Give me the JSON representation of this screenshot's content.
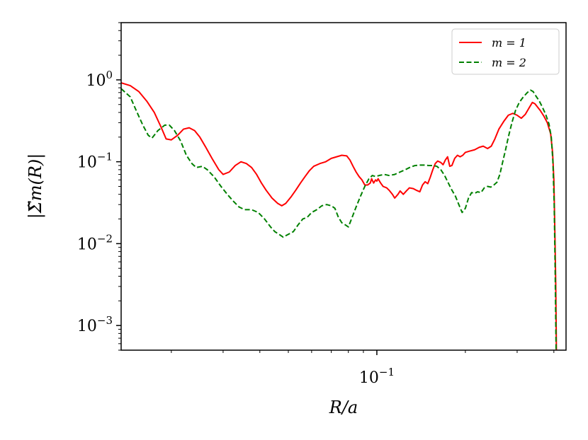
{
  "chart_data": {
    "type": "line",
    "xscale": "log",
    "yscale": "log",
    "xlabel": "R/a",
    "ylabel": "|Σ̃m(R)|",
    "xlim": [
      0.0135,
      0.44
    ],
    "ylim": [
      0.0005,
      5
    ],
    "x_ticks": [
      {
        "value": 0.1,
        "base": "10",
        "exp": "−1"
      }
    ],
    "y_ticks": [
      {
        "value": 1,
        "base": "10",
        "exp": "0"
      },
      {
        "value": 0.1,
        "base": "10",
        "exp": "−1"
      },
      {
        "value": 0.01,
        "base": "10",
        "exp": "−2"
      },
      {
        "value": 0.001,
        "base": "10",
        "exp": "−3"
      }
    ],
    "legend": {
      "position": "top-right"
    },
    "series": [
      {
        "name": "m = 1",
        "color": "#ff0000",
        "dash": "solid",
        "points": [
          [
            0.0135,
            0.92
          ],
          [
            0.0145,
            0.85
          ],
          [
            0.0155,
            0.72
          ],
          [
            0.0165,
            0.55
          ],
          [
            0.0175,
            0.4
          ],
          [
            0.0185,
            0.26
          ],
          [
            0.0192,
            0.19
          ],
          [
            0.02,
            0.185
          ],
          [
            0.021,
            0.21
          ],
          [
            0.022,
            0.25
          ],
          [
            0.023,
            0.26
          ],
          [
            0.024,
            0.24
          ],
          [
            0.025,
            0.2
          ],
          [
            0.0262,
            0.15
          ],
          [
            0.0275,
            0.11
          ],
          [
            0.029,
            0.08
          ],
          [
            0.03,
            0.07
          ],
          [
            0.0315,
            0.075
          ],
          [
            0.033,
            0.09
          ],
          [
            0.0345,
            0.1
          ],
          [
            0.036,
            0.095
          ],
          [
            0.0375,
            0.085
          ],
          [
            0.039,
            0.07
          ],
          [
            0.0405,
            0.055
          ],
          [
            0.042,
            0.045
          ],
          [
            0.044,
            0.036
          ],
          [
            0.046,
            0.031
          ],
          [
            0.0475,
            0.029
          ],
          [
            0.049,
            0.031
          ],
          [
            0.051,
            0.037
          ],
          [
            0.053,
            0.045
          ],
          [
            0.055,
            0.055
          ],
          [
            0.057,
            0.066
          ],
          [
            0.059,
            0.078
          ],
          [
            0.061,
            0.088
          ],
          [
            0.064,
            0.095
          ],
          [
            0.067,
            0.1
          ],
          [
            0.07,
            0.11
          ],
          [
            0.073,
            0.115
          ],
          [
            0.076,
            0.12
          ],
          [
            0.079,
            0.118
          ],
          [
            0.081,
            0.105
          ],
          [
            0.083,
            0.088
          ],
          [
            0.085,
            0.075
          ],
          [
            0.087,
            0.066
          ],
          [
            0.089,
            0.06
          ],
          [
            0.091,
            0.052
          ],
          [
            0.093,
            0.052
          ],
          [
            0.095,
            0.055
          ],
          [
            0.096,
            0.062
          ],
          [
            0.0975,
            0.055
          ],
          [
            0.099,
            0.06
          ],
          [
            0.1,
            0.058
          ],
          [
            0.101,
            0.062
          ],
          [
            0.103,
            0.055
          ],
          [
            0.105,
            0.05
          ],
          [
            0.108,
            0.048
          ],
          [
            0.11,
            0.045
          ],
          [
            0.113,
            0.04
          ],
          [
            0.115,
            0.036
          ],
          [
            0.118,
            0.04
          ],
          [
            0.12,
            0.044
          ],
          [
            0.123,
            0.04
          ],
          [
            0.126,
            0.044
          ],
          [
            0.129,
            0.048
          ],
          [
            0.133,
            0.047
          ],
          [
            0.136,
            0.045
          ],
          [
            0.14,
            0.043
          ],
          [
            0.143,
            0.052
          ],
          [
            0.146,
            0.057
          ],
          [
            0.149,
            0.054
          ],
          [
            0.152,
            0.065
          ],
          [
            0.155,
            0.08
          ],
          [
            0.158,
            0.095
          ],
          [
            0.161,
            0.102
          ],
          [
            0.165,
            0.098
          ],
          [
            0.168,
            0.092
          ],
          [
            0.171,
            0.105
          ],
          [
            0.174,
            0.115
          ],
          [
            0.177,
            0.088
          ],
          [
            0.18,
            0.09
          ],
          [
            0.184,
            0.11
          ],
          [
            0.188,
            0.12
          ],
          [
            0.192,
            0.115
          ],
          [
            0.196,
            0.12
          ],
          [
            0.2,
            0.13
          ],
          [
            0.207,
            0.135
          ],
          [
            0.215,
            0.14
          ],
          [
            0.223,
            0.15
          ],
          [
            0.23,
            0.155
          ],
          [
            0.238,
            0.145
          ],
          [
            0.245,
            0.155
          ],
          [
            0.252,
            0.19
          ],
          [
            0.26,
            0.25
          ],
          [
            0.27,
            0.31
          ],
          [
            0.28,
            0.37
          ],
          [
            0.29,
            0.39
          ],
          [
            0.3,
            0.37
          ],
          [
            0.31,
            0.34
          ],
          [
            0.32,
            0.38
          ],
          [
            0.33,
            0.46
          ],
          [
            0.338,
            0.53
          ],
          [
            0.345,
            0.51
          ],
          [
            0.353,
            0.46
          ],
          [
            0.36,
            0.42
          ],
          [
            0.37,
            0.36
          ],
          [
            0.38,
            0.3
          ],
          [
            0.39,
            0.22
          ],
          [
            0.396,
            0.13
          ],
          [
            0.4,
            0.06
          ],
          [
            0.403,
            0.015
          ],
          [
            0.406,
            0.003
          ],
          [
            0.408,
            0.0005
          ]
        ]
      },
      {
        "name": "m = 2",
        "color": "#008000",
        "dash": "dashed",
        "points": [
          [
            0.0135,
            0.78
          ],
          [
            0.0145,
            0.62
          ],
          [
            0.0152,
            0.42
          ],
          [
            0.016,
            0.28
          ],
          [
            0.0167,
            0.21
          ],
          [
            0.0172,
            0.195
          ],
          [
            0.018,
            0.24
          ],
          [
            0.019,
            0.28
          ],
          [
            0.0197,
            0.28
          ],
          [
            0.0205,
            0.24
          ],
          [
            0.0215,
            0.18
          ],
          [
            0.0225,
            0.12
          ],
          [
            0.0235,
            0.095
          ],
          [
            0.0243,
            0.085
          ],
          [
            0.0255,
            0.088
          ],
          [
            0.0265,
            0.08
          ],
          [
            0.028,
            0.065
          ],
          [
            0.0295,
            0.05
          ],
          [
            0.031,
            0.04
          ],
          [
            0.0325,
            0.033
          ],
          [
            0.034,
            0.028
          ],
          [
            0.0355,
            0.026
          ],
          [
            0.0375,
            0.026
          ],
          [
            0.0395,
            0.024
          ],
          [
            0.0415,
            0.02
          ],
          [
            0.0435,
            0.016
          ],
          [
            0.045,
            0.014
          ],
          [
            0.0465,
            0.013
          ],
          [
            0.048,
            0.012
          ],
          [
            0.05,
            0.013
          ],
          [
            0.052,
            0.014
          ],
          [
            0.054,
            0.017
          ],
          [
            0.056,
            0.02
          ],
          [
            0.058,
            0.021
          ],
          [
            0.06,
            0.024
          ],
          [
            0.0625,
            0.026
          ],
          [
            0.065,
            0.029
          ],
          [
            0.0675,
            0.03
          ],
          [
            0.07,
            0.029
          ],
          [
            0.072,
            0.027
          ],
          [
            0.074,
            0.021
          ],
          [
            0.076,
            0.018
          ],
          [
            0.078,
            0.017
          ],
          [
            0.08,
            0.016
          ],
          [
            0.082,
            0.02
          ],
          [
            0.085,
            0.028
          ],
          [
            0.088,
            0.038
          ],
          [
            0.091,
            0.05
          ],
          [
            0.094,
            0.062
          ],
          [
            0.0965,
            0.068
          ],
          [
            0.099,
            0.066
          ],
          [
            0.102,
            0.068
          ],
          [
            0.106,
            0.07
          ],
          [
            0.11,
            0.068
          ],
          [
            0.115,
            0.07
          ],
          [
            0.12,
            0.075
          ],
          [
            0.125,
            0.08
          ],
          [
            0.13,
            0.086
          ],
          [
            0.135,
            0.09
          ],
          [
            0.14,
            0.091
          ],
          [
            0.145,
            0.091
          ],
          [
            0.15,
            0.09
          ],
          [
            0.155,
            0.09
          ],
          [
            0.16,
            0.088
          ],
          [
            0.165,
            0.08
          ],
          [
            0.17,
            0.068
          ],
          [
            0.175,
            0.055
          ],
          [
            0.18,
            0.045
          ],
          [
            0.185,
            0.038
          ],
          [
            0.19,
            0.03
          ],
          [
            0.195,
            0.024
          ],
          [
            0.2,
            0.027
          ],
          [
            0.205,
            0.036
          ],
          [
            0.21,
            0.042
          ],
          [
            0.215,
            0.041
          ],
          [
            0.22,
            0.043
          ],
          [
            0.226,
            0.042
          ],
          [
            0.232,
            0.048
          ],
          [
            0.238,
            0.05
          ],
          [
            0.244,
            0.049
          ],
          [
            0.25,
            0.052
          ],
          [
            0.256,
            0.056
          ],
          [
            0.262,
            0.07
          ],
          [
            0.268,
            0.1
          ],
          [
            0.274,
            0.14
          ],
          [
            0.28,
            0.2
          ],
          [
            0.288,
            0.3
          ],
          [
            0.296,
            0.42
          ],
          [
            0.305,
            0.53
          ],
          [
            0.315,
            0.62
          ],
          [
            0.325,
            0.7
          ],
          [
            0.333,
            0.75
          ],
          [
            0.34,
            0.72
          ],
          [
            0.348,
            0.63
          ],
          [
            0.356,
            0.56
          ],
          [
            0.365,
            0.47
          ],
          [
            0.375,
            0.38
          ],
          [
            0.385,
            0.29
          ],
          [
            0.392,
            0.2
          ],
          [
            0.397,
            0.1
          ],
          [
            0.401,
            0.03
          ],
          [
            0.404,
            0.005
          ],
          [
            0.407,
            0.0005
          ]
        ]
      }
    ]
  }
}
